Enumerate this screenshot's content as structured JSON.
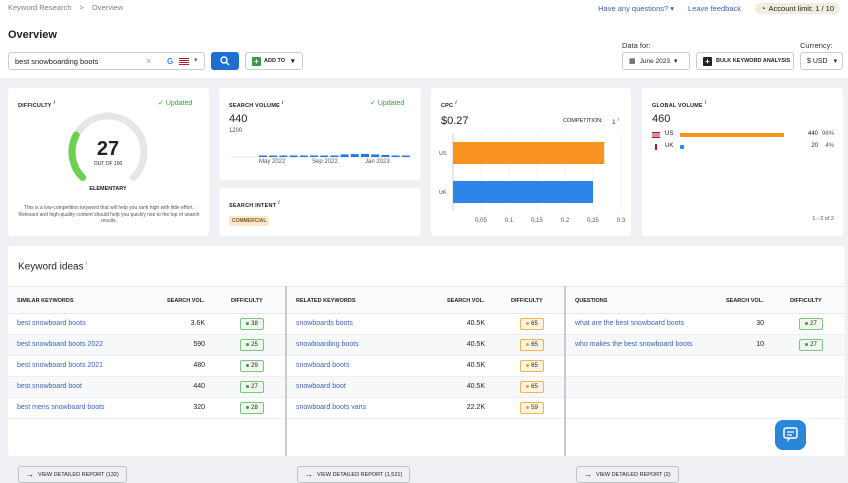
{
  "topbar": {
    "crumbs": [
      "Keyword Research",
      ">",
      "Overview"
    ],
    "questions": "Have any questions?",
    "feedback": "Leave feedback",
    "limit": "Account limit: 1 / 10"
  },
  "header": {
    "title": "Overview",
    "search_value": "best snowboarding boots",
    "add_to": "ADD TO",
    "data_for_label": "Data for:",
    "date": "June 2023",
    "bulk": "BULK KEYWORD ANALYSIS",
    "currency_label": "Currency:",
    "currency": "$ USD"
  },
  "difficulty": {
    "title": "DIFFICULTY",
    "updated": "Updated",
    "value": "27",
    "out_of": "OUT OF 100",
    "level": "ELEMENTARY",
    "score": 27,
    "desc": "This is a low-competition keyword that will help you rank high with little effort. Relevant and high-quality content should help you quickly rise to the top of search results."
  },
  "search_volume": {
    "title": "SEARCH VOLUME",
    "updated": "Updated",
    "value": "440",
    "y_tick": "1200",
    "x_ticks": [
      "May 2022",
      "Sep 2022",
      "Jan 2023"
    ],
    "bars": [
      15,
      18,
      20,
      28,
      38,
      45,
      48,
      55,
      120,
      135,
      140,
      120,
      95,
      70,
      45
    ]
  },
  "search_intent": {
    "title": "SEARCH INTENT",
    "tag": "COMMERCIAL"
  },
  "cpc": {
    "title": "CPC",
    "value": "$0.27",
    "competition_label": "COMPETITION:",
    "competition_value": "1",
    "chart_data": {
      "type": "bar",
      "categories": [
        "US",
        "UK"
      ],
      "values": [
        0.27,
        0.25
      ],
      "colors": [
        "#f7931e",
        "#2a86e8"
      ],
      "xlim": [
        0,
        0.3
      ],
      "x_ticks": [
        "0.05",
        "0.1",
        "0.15",
        "0.2",
        "0.25",
        "0.3"
      ]
    }
  },
  "global_volume": {
    "title": "GLOBAL VOLUME",
    "value": "460",
    "rows": [
      {
        "country": "US",
        "volume": "440",
        "pct": "96%",
        "share": 0.96,
        "color": "#f7931e"
      },
      {
        "country": "UK",
        "volume": "20",
        "pct": "4%",
        "share": 0.04,
        "color": "#2a86e8"
      }
    ],
    "pager": "1 - 2 of 2"
  },
  "keyword_ideas": {
    "title": "Keyword ideas",
    "columns": [
      {
        "header": "SIMILAR KEYWORDS",
        "vol_header": "SEARCH VOL.",
        "diff_header": "DIFFICULTY",
        "button": "VIEW DETAILED REPORT (132)",
        "rows": [
          {
            "kw": "best snowboard boots",
            "vol": "3.6K",
            "diff": "38",
            "c": "g"
          },
          {
            "kw": "best snowboard boots 2022",
            "vol": "590",
            "diff": "25",
            "c": "g"
          },
          {
            "kw": "best snowboard boots 2021",
            "vol": "480",
            "diff": "29",
            "c": "g"
          },
          {
            "kw": "best snowboard boot",
            "vol": "440",
            "diff": "27",
            "c": "g"
          },
          {
            "kw": "best mens snowboard boots",
            "vol": "320",
            "diff": "28",
            "c": "g"
          }
        ]
      },
      {
        "header": "RELATED KEYWORDS",
        "vol_header": "SEARCH VOL.",
        "diff_header": "DIFFICULTY",
        "button": "VIEW DETAILED REPORT (1,521)",
        "rows": [
          {
            "kw": "snowboards boots",
            "vol": "40.5K",
            "diff": "65",
            "c": "y"
          },
          {
            "kw": "snowboarding boots",
            "vol": "40.5K",
            "diff": "65",
            "c": "y"
          },
          {
            "kw": "snowboard boots",
            "vol": "40.5K",
            "diff": "65",
            "c": "y"
          },
          {
            "kw": "snowboard boot",
            "vol": "40.5K",
            "diff": "65",
            "c": "y"
          },
          {
            "kw": "snowboard boots vans",
            "vol": "22.2K",
            "diff": "59",
            "c": "y"
          }
        ]
      },
      {
        "header": "QUESTIONS",
        "vol_header": "SEARCH VOL.",
        "diff_header": "DIFFICULTY",
        "button": "VIEW DETAILED REPORT (2)",
        "rows": [
          {
            "kw": "what are the best snowboard boots",
            "vol": "30",
            "diff": "27",
            "c": "g"
          },
          {
            "kw": "who makes the best snowboard boots",
            "vol": "10",
            "diff": "27",
            "c": "g"
          }
        ]
      }
    ]
  },
  "colors": {
    "accent": "#1f6fd1",
    "green": "#3b9b45",
    "orange": "#f7931e",
    "blue": "#2a86e8"
  }
}
